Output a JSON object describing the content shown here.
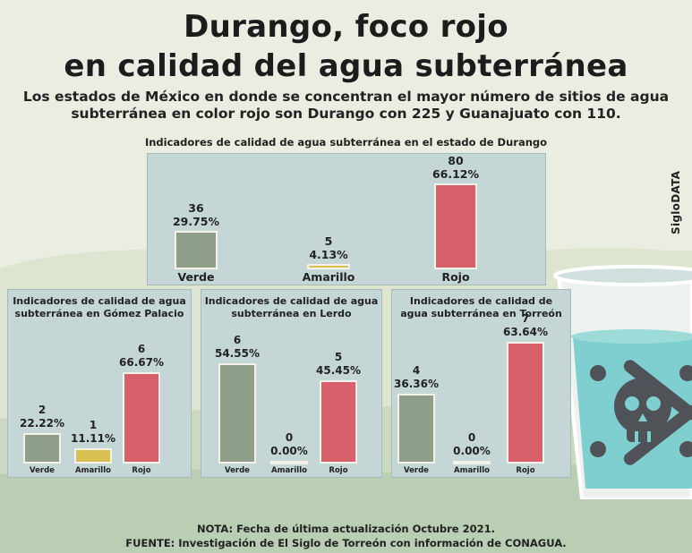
{
  "title_line1": "Durango, foco rojo",
  "title_line2": "en calidad del agua subterránea",
  "subtitle_line1": "Los estados de México en donde se concentran el mayor número de sitios de agua",
  "subtitle_line2": "subterránea en color rojo son Durango con 225 y Guanajuato con 110.",
  "brand": "SigloDATA",
  "note": "NOTA: Fecha de última actualización Octubre 2021.",
  "source": "FUENTE: Investigación de El Siglo de Torreón con información de CONAGUA.",
  "colors": {
    "Verde": "#8e9e89",
    "Amarillo": "#d8c052",
    "Rojo": "#d9606a"
  },
  "chart_data": [
    {
      "type": "bar",
      "title": "Indicadores de calidad de agua subterránea en el estado de Durango",
      "categories": [
        "Verde",
        "Amarillo",
        "Rojo"
      ],
      "values": [
        36,
        5,
        80
      ],
      "percent_labels": [
        "29.75%",
        "4.13%",
        "66.12%"
      ]
    },
    {
      "type": "bar",
      "title": "Indicadores de calidad de agua subterránea en Gómez Palacio",
      "categories": [
        "Verde",
        "Amarillo",
        "Rojo"
      ],
      "values": [
        2,
        1,
        6
      ],
      "percent_labels": [
        "22.22%",
        "11.11%",
        "66.67%"
      ]
    },
    {
      "type": "bar",
      "title": "Indicadores de calidad de agua subterránea en Lerdo",
      "categories": [
        "Verde",
        "Amarillo",
        "Rojo"
      ],
      "values": [
        6,
        0,
        5
      ],
      "percent_labels": [
        "54.55%",
        "0.00%",
        "45.45%"
      ]
    },
    {
      "type": "bar",
      "title": "Indicadores de calidad de agua subterránea en Torreón",
      "categories": [
        "Verde",
        "Amarillo",
        "Rojo"
      ],
      "values": [
        4,
        0,
        7
      ],
      "percent_labels": [
        "36.36%",
        "0.00%",
        "63.64%"
      ]
    }
  ]
}
